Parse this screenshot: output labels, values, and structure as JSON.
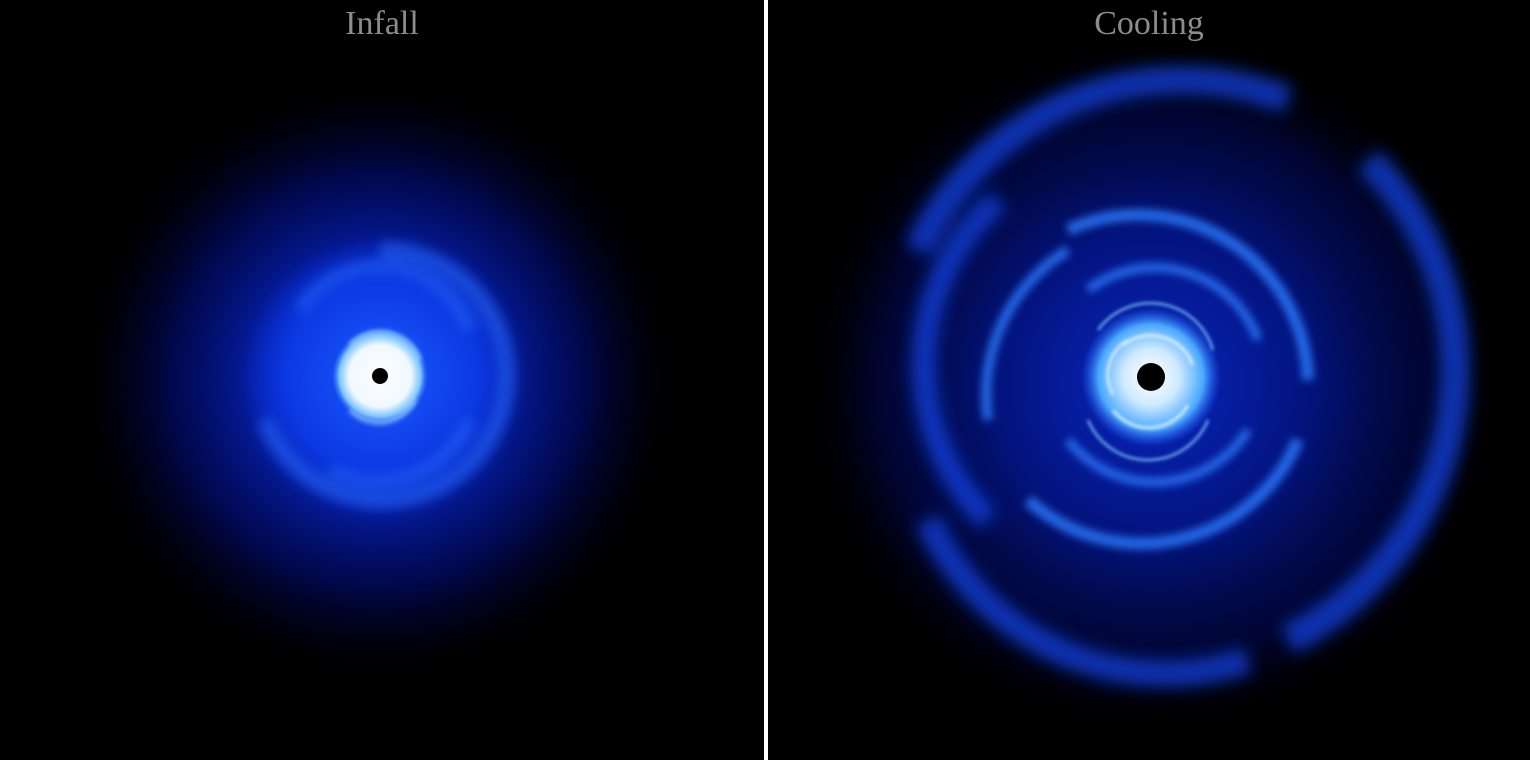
{
  "panels": [
    {
      "title": "Infall"
    },
    {
      "title": "Cooling"
    }
  ],
  "colors": {
    "background": "#000000",
    "divider": "#ffffff",
    "title": "#8c8c8c",
    "disk_core": "#ffffff",
    "disk_bright": "#4aa8ff",
    "disk_mid": "#0a2fd8",
    "disk_outer": "#001080"
  }
}
